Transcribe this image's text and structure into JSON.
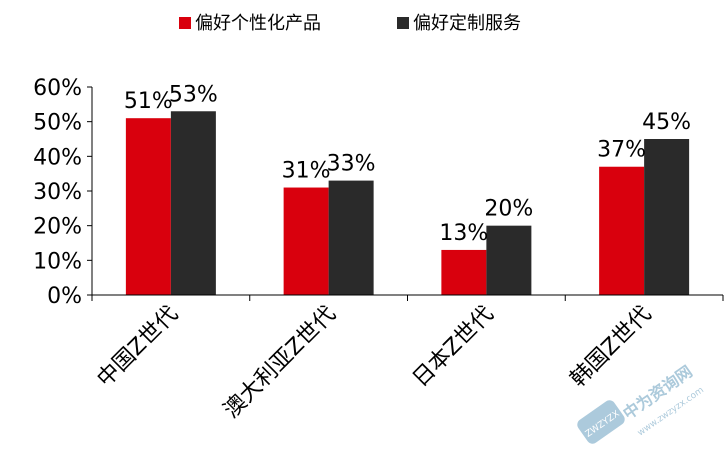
{
  "chart_data": {
    "type": "bar",
    "categories": [
      "中国Z世代",
      "澳大利亚Z世代",
      "日本Z世代",
      "韩国Z世代"
    ],
    "series": [
      {
        "name": "偏好个性化产品",
        "color": "#d9000d",
        "values": [
          51,
          31,
          13,
          37
        ]
      },
      {
        "name": "偏好定制服务",
        "color": "#2a2a2a",
        "values": [
          53,
          33,
          20,
          45
        ]
      }
    ],
    "value_labels": [
      [
        "51%",
        "31%",
        "13%",
        "37%"
      ],
      [
        "53%",
        "33%",
        "20%",
        "45%"
      ]
    ],
    "yticks": [
      "0%",
      "10%",
      "20%",
      "30%",
      "40%",
      "50%",
      "60%"
    ],
    "ylim": [
      0,
      60
    ],
    "grid": false,
    "legend_position": "top"
  },
  "watermark": {
    "text": "中为资询网",
    "url": "www.zwzyzx.com",
    "badge": "ZWZYZX"
  }
}
